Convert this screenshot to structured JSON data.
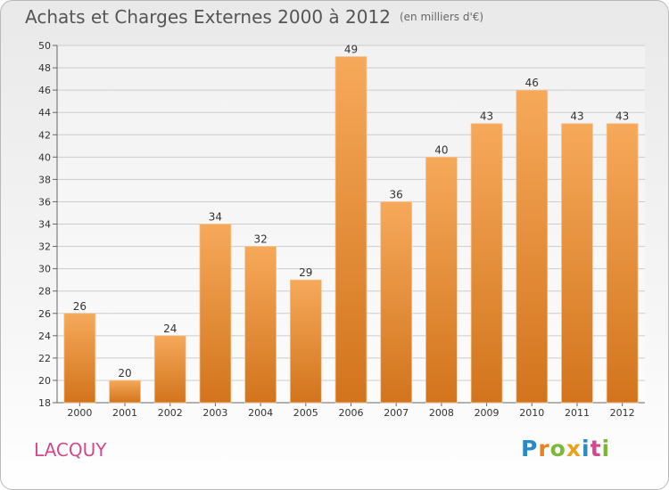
{
  "header": {
    "title": "Achats et Charges Externes 2000 à 2012",
    "unit": "(en milliers d'€)"
  },
  "commune": "LACQUY",
  "logo": {
    "letters": [
      "P",
      "r",
      "o",
      "x",
      "i",
      "t",
      "i"
    ]
  },
  "colors": {
    "bar_top": "#f6a95a",
    "bar_bottom": "#d2741c",
    "grid": "#cccccc",
    "commune_text": "#d24a8a"
  },
  "chart_data": {
    "type": "bar",
    "title": "Achats et Charges Externes 2000 à 2012",
    "subtitle": "(en milliers d'€)",
    "xlabel": "",
    "ylabel": "",
    "categories": [
      "2000",
      "2001",
      "2002",
      "2003",
      "2004",
      "2005",
      "2006",
      "2007",
      "2008",
      "2009",
      "2010",
      "2011",
      "2012"
    ],
    "values": [
      26,
      20,
      24,
      34,
      32,
      29,
      49,
      36,
      40,
      43,
      46,
      43,
      43
    ],
    "ylim": [
      18,
      50
    ],
    "yticks": [
      18,
      20,
      22,
      24,
      26,
      28,
      30,
      32,
      34,
      36,
      38,
      40,
      42,
      44,
      46,
      48,
      50
    ],
    "grid": true,
    "legend": "none"
  }
}
